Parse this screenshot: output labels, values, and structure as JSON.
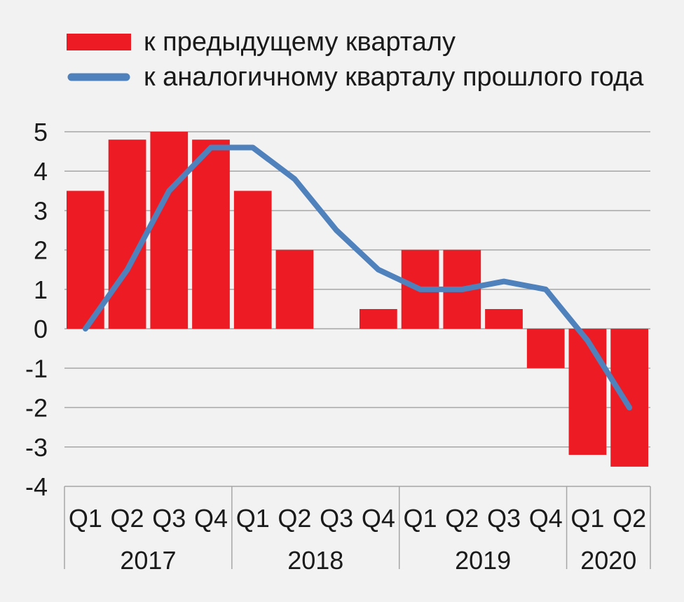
{
  "chart_data": {
    "type": "bar",
    "categories": [
      "Q1",
      "Q2",
      "Q3",
      "Q4",
      "Q1",
      "Q2",
      "Q3",
      "Q4",
      "Q1",
      "Q2",
      "Q3",
      "Q4",
      "Q1",
      "Q2"
    ],
    "groups": [
      {
        "label": "2017",
        "span": 4
      },
      {
        "label": "2018",
        "span": 4
      },
      {
        "label": "2019",
        "span": 4
      },
      {
        "label": "2020",
        "span": 2
      }
    ],
    "series": [
      {
        "name": "к предыдущему кварталу",
        "kind": "bar",
        "color": "#ed1c24",
        "values": [
          3.5,
          4.8,
          5.0,
          4.8,
          3.5,
          2.0,
          0.0,
          0.5,
          2.0,
          2.0,
          0.5,
          -1.0,
          -3.2,
          -3.5
        ]
      },
      {
        "name": "к аналогичному кварталу прошлого года",
        "kind": "line",
        "color": "#4f81bd",
        "values": [
          0.0,
          1.5,
          3.5,
          4.6,
          4.6,
          3.8,
          2.5,
          1.5,
          1.0,
          1.0,
          1.2,
          1.0,
          -0.3,
          -2.0
        ]
      }
    ],
    "yticks": [
      "5",
      "4",
      "3",
      "2",
      "1",
      "0",
      "-1",
      "-2",
      "-3",
      "-4"
    ],
    "ylim": [
      -4,
      5
    ],
    "grid": true,
    "legend_position": "top-left"
  }
}
